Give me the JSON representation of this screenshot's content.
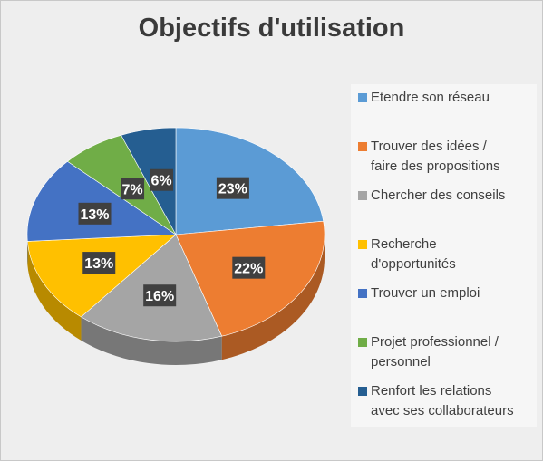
{
  "chart_data": {
    "type": "pie",
    "title": "Objectifs d'utilisation",
    "categories": [
      "Etendre son réseau",
      "Trouver des idées / faire des propositions",
      "Chercher des conseils",
      "Recherche d'opportunités",
      "Trouver un emploi",
      "Projet professionnel / personnel",
      "Renfort les relations avec ses collaborateurs"
    ],
    "values": [
      23,
      22,
      16,
      13,
      13,
      7,
      6
    ],
    "labels": [
      "23%",
      "22%",
      "16%",
      "13%",
      "13%",
      "7%",
      "6%"
    ],
    "colors": [
      "#5b9bd5",
      "#ed7d31",
      "#a5a5a5",
      "#ffc000",
      "#4472c4",
      "#70ad47",
      "#255e91"
    ],
    "legend_position": "right"
  },
  "legend": {
    "items": [
      {
        "line1": "Etendre son réseau",
        "line2": ""
      },
      {
        "line1": "Trouver des idées /",
        "line2": "faire des propositions"
      },
      {
        "line1": "Chercher des conseils",
        "line2": ""
      },
      {
        "line1": "Recherche",
        "line2": "d'opportunités"
      },
      {
        "line1": "Trouver un emploi",
        "line2": ""
      },
      {
        "line1": "Projet professionnel /",
        "line2": "personnel"
      },
      {
        "line1": "Renfort les relations",
        "line2": "avec ses collaborateurs"
      }
    ]
  }
}
